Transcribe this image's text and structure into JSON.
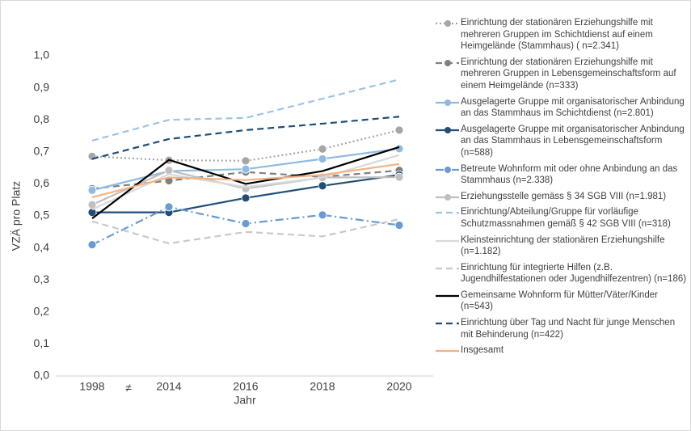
{
  "chart_data": {
    "type": "line",
    "y_label": "VZÄ pro Platz",
    "x_label": "Jahr",
    "annotation": "≠",
    "categories": [
      "1998",
      "2014",
      "2016",
      "2018",
      "2020"
    ],
    "ylim": [
      0,
      1.1
    ],
    "yticks": [
      {
        "value": 0,
        "label": "0,0"
      },
      {
        "value": 0.1,
        "label": "0,1"
      },
      {
        "value": 0.2,
        "label": "0,2"
      },
      {
        "value": 0.3,
        "label": "0,3"
      },
      {
        "value": 0.4,
        "label": "0,4"
      },
      {
        "value": 0.5,
        "label": "0,5"
      },
      {
        "value": 0.6,
        "label": "0,6"
      },
      {
        "value": 0.7,
        "label": "0,7"
      },
      {
        "value": 0.8,
        "label": "0,8"
      },
      {
        "value": 0.9,
        "label": "0,9"
      },
      {
        "value": 1.0,
        "label": "1,0"
      }
    ],
    "series": [
      {
        "name": "Einrichtung der stationären Erziehungshilfe mit mehreren Gruppen im Schichtdienst auf einem Heimgelände (Stammhaus) ( n=2.341)",
        "color": "#a6a6a6",
        "dash": "dotted",
        "marker": true,
        "values": [
          0.686,
          0.674,
          0.672,
          0.709,
          0.768
        ]
      },
      {
        "name": "Einrichtung der stationären Erziehungshilfe mit mehreren Gruppen in Lebensgemeinschaftsform auf einem Heimgelände (n=333)",
        "color": "#808080",
        "dash": "dashed",
        "marker": true,
        "values": [
          0.585,
          0.61,
          0.637,
          0.622,
          0.642
        ]
      },
      {
        "name": "Ausgelagerte Gruppe mit organisatorischer Anbindung an das Stammhaus im Schichtdienst (n=2.801)",
        "color": "#8fbbe3",
        "dash": "solid",
        "marker": true,
        "values": [
          0.58,
          0.64,
          0.646,
          0.678,
          0.71
        ]
      },
      {
        "name": "Ausgelagerte Gruppe mit organisatorischer Anbindung an das Stammhaus in Lebensgemeinschaftsform (n=588)",
        "color": "#1f4e79",
        "dash": "solid",
        "marker": true,
        "values": [
          0.511,
          0.511,
          0.556,
          0.594,
          0.628
        ]
      },
      {
        "name": "Betreute Wohnform mit oder ohne Anbindung an das Stammhaus  (n=2.338)",
        "color": "#6a9bd1",
        "dash": "dash-dot",
        "marker": true,
        "values": [
          0.41,
          0.528,
          0.476,
          0.503,
          0.471
        ]
      },
      {
        "name": "Erziehungsstelle gemäss § 34 SGB VIII (n=1.981)",
        "color": "#bfbfbf",
        "dash": "solid",
        "marker": true,
        "values": [
          0.535,
          0.642,
          0.585,
          0.62,
          0.621
        ]
      },
      {
        "name": "Einrichtung/Abteilung/Gruppe für vorläufige Schutzmassnahmen gemäß § 42 SGB VIII (n=318)",
        "color": "#9dc3e6",
        "dash": "dashed",
        "marker": false,
        "values": [
          0.735,
          0.8,
          0.806,
          0.866,
          0.926
        ]
      },
      {
        "name": "Kleinsteinrichtung der stationären Erziehungshilfe (n=1.182)",
        "color": "#d9d9d9",
        "dash": "solid",
        "marker": false,
        "values": [
          0.52,
          0.63,
          0.59,
          0.62,
          0.69
        ]
      },
      {
        "name": "Einrichtung für integrierte Hilfen (z.B. Jugendhilfestationen oder Jugendhilfezentren) (n=186)",
        "color": "#c9c9c9",
        "dash": "dashed",
        "marker": false,
        "values": [
          0.483,
          0.414,
          0.45,
          0.436,
          0.49
        ]
      },
      {
        "name": "Gemeinsame Wohnform für Mütter/Väter/Kinder (n=543)",
        "color": "#000000",
        "dash": "solid",
        "marker": false,
        "values": [
          0.492,
          0.675,
          0.6,
          0.64,
          0.715
        ]
      },
      {
        "name": "Einrichtung über Tag und Nacht für junge Menschen mit Behinderung (n=422)",
        "color": "#1f4e79",
        "dash": "dashed",
        "marker": false,
        "values": [
          0.678,
          0.74,
          0.768,
          0.788,
          0.81
        ]
      },
      {
        "name": "Insgesamt",
        "color": "#f4b183",
        "dash": "solid",
        "marker": false,
        "values": [
          0.558,
          0.62,
          0.612,
          0.628,
          0.662
        ]
      }
    ]
  }
}
